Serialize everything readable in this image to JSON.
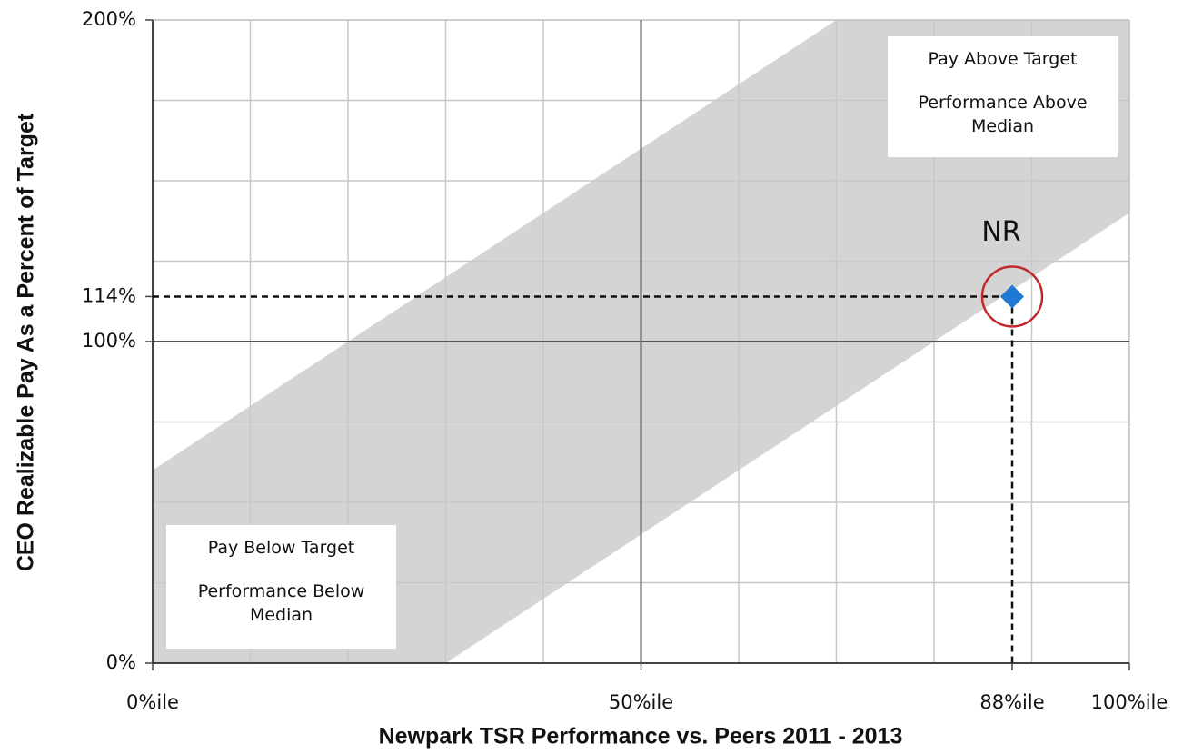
{
  "chart_data": {
    "type": "scatter",
    "x_label": "Newpark TSR Performance vs. Peers 2011 - 2013",
    "y_label": "CEO Realizable Pay As a Percent of Target",
    "xlim": [
      0,
      100
    ],
    "ylim": [
      0,
      200
    ],
    "xticks": [
      {
        "value": 0,
        "label": "0%ile"
      },
      {
        "value": 50,
        "label": "50%ile"
      },
      {
        "value": 88,
        "label": "88%ile"
      },
      {
        "value": 100,
        "label": "100%ile"
      }
    ],
    "yticks": [
      {
        "value": 0,
        "label": "0%"
      },
      {
        "value": 100,
        "label": "100%"
      },
      {
        "value": 114,
        "label": "114%"
      },
      {
        "value": 200,
        "label": "200%"
      }
    ],
    "minor_xticks": [
      10,
      20,
      30,
      40,
      60,
      70,
      80,
      90
    ],
    "minor_yticks": [
      25,
      50,
      75,
      125,
      150,
      175
    ],
    "major_grid": {
      "x": [
        50
      ],
      "y": [
        100
      ]
    },
    "band": {
      "color": "#d4d4d4",
      "points": [
        [
          30,
          0
        ],
        [
          100,
          140
        ],
        [
          100,
          200
        ],
        [
          70,
          200
        ],
        [
          0,
          60
        ],
        [
          0,
          0
        ]
      ]
    },
    "series": [
      {
        "name": "NR",
        "color": "#1f78d1",
        "x": [
          88
        ],
        "values": [
          114
        ]
      }
    ],
    "highlight_color": "#c0282d",
    "annotations": [
      {
        "lines": [
          "Pay Above Target",
          "Performance Above Median"
        ]
      },
      {
        "lines": [
          "Pay Below Target",
          "Performance Below Median"
        ]
      }
    ]
  }
}
